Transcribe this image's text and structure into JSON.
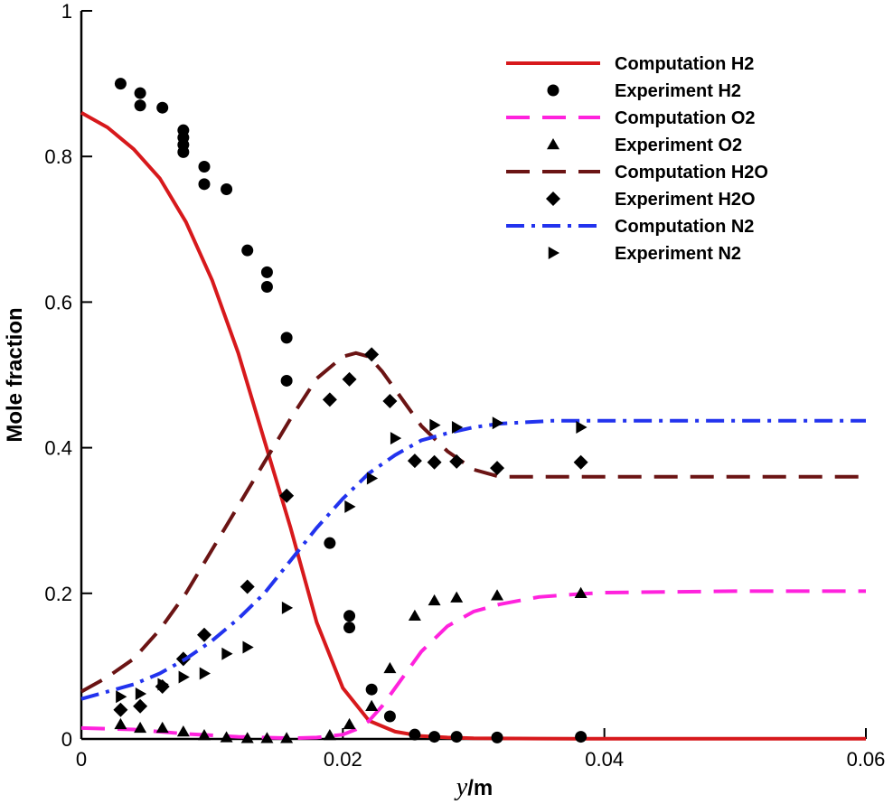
{
  "chart_data": {
    "type": "line",
    "xlabel_var": "y",
    "xlabel_unit": "/m",
    "ylabel": "Mole fraction",
    "xlim": [
      0,
      0.06
    ],
    "ylim": [
      0,
      1
    ],
    "x_ticks": [
      0,
      0.02,
      0.04,
      0.06
    ],
    "x_tick_labels": [
      "0",
      "0.02",
      "0.04",
      "0.06"
    ],
    "y_ticks": [
      0,
      0.2,
      0.4,
      0.6,
      0.8,
      1
    ],
    "y_tick_labels": [
      "0",
      "0.2",
      "0.4",
      "0.6",
      "0.8",
      "1"
    ],
    "grid": false,
    "legend_position": "top-right",
    "series": [
      {
        "name": "Computation H2",
        "kind": "line",
        "style": "solid",
        "color": "#d7191c",
        "x": [
          0,
          0.002,
          0.004,
          0.006,
          0.008,
          0.01,
          0.012,
          0.014,
          0.016,
          0.018,
          0.02,
          0.022,
          0.024,
          0.026,
          0.028,
          0.03,
          0.035,
          0.04,
          0.05,
          0.06
        ],
        "y": [
          0.86,
          0.84,
          0.81,
          0.77,
          0.71,
          0.63,
          0.53,
          0.41,
          0.29,
          0.16,
          0.07,
          0.025,
          0.01,
          0.004,
          0.002,
          0.001,
          0.0005,
          0.0003,
          0.0002,
          0.0002
        ]
      },
      {
        "name": "Experiment H2",
        "kind": "scatter",
        "marker": "circle",
        "color": "#000000",
        "x": [
          0.003,
          0.0045,
          0.0045,
          0.0062,
          0.0078,
          0.0078,
          0.0078,
          0.0078,
          0.0094,
          0.0094,
          0.0111,
          0.0127,
          0.0142,
          0.0142,
          0.0157,
          0.0157,
          0.019,
          0.0205,
          0.0205,
          0.0222,
          0.0236,
          0.0255,
          0.027,
          0.0287,
          0.0318,
          0.0382
        ],
        "y": [
          0.9,
          0.887,
          0.87,
          0.867,
          0.836,
          0.826,
          0.816,
          0.806,
          0.786,
          0.762,
          0.755,
          0.671,
          0.641,
          0.621,
          0.551,
          0.492,
          0.269,
          0.169,
          0.153,
          0.068,
          0.031,
          0.006,
          0.003,
          0.003,
          0.002,
          0.003
        ]
      },
      {
        "name": "Computation O2",
        "kind": "line",
        "style": "dashed",
        "color": "#ff22dd",
        "x": [
          0,
          0.004,
          0.008,
          0.012,
          0.016,
          0.018,
          0.02,
          0.021,
          0.022,
          0.023,
          0.024,
          0.025,
          0.026,
          0.028,
          0.03,
          0.032,
          0.035,
          0.038,
          0.04,
          0.05,
          0.06
        ],
        "y": [
          0.015,
          0.013,
          0.007,
          0.003,
          0.001,
          0.002,
          0.006,
          0.013,
          0.025,
          0.045,
          0.07,
          0.095,
          0.12,
          0.155,
          0.175,
          0.185,
          0.195,
          0.199,
          0.201,
          0.203,
          0.203
        ]
      },
      {
        "name": "Experiment O2",
        "kind": "scatter",
        "marker": "triangle-up",
        "color": "#000000",
        "x": [
          0.003,
          0.0045,
          0.0062,
          0.0078,
          0.0094,
          0.0111,
          0.0127,
          0.0142,
          0.0157,
          0.019,
          0.0205,
          0.0222,
          0.0236,
          0.0255,
          0.027,
          0.0287,
          0.0318,
          0.0382
        ],
        "y": [
          0.02,
          0.015,
          0.015,
          0.01,
          0.005,
          0.002,
          0.001,
          0.001,
          0.001,
          0.005,
          0.02,
          0.045,
          0.097,
          0.169,
          0.19,
          0.194,
          0.197,
          0.2
        ]
      },
      {
        "name": "Computation H2O",
        "kind": "line",
        "style": "dashed",
        "color": "#6b1414",
        "x": [
          0,
          0.002,
          0.004,
          0.006,
          0.008,
          0.01,
          0.012,
          0.014,
          0.016,
          0.018,
          0.02,
          0.021,
          0.022,
          0.023,
          0.024,
          0.025,
          0.026,
          0.028,
          0.03,
          0.032,
          0.034,
          0.036,
          0.038,
          0.04,
          0.05,
          0.06
        ],
        "y": [
          0.065,
          0.085,
          0.11,
          0.15,
          0.2,
          0.26,
          0.32,
          0.38,
          0.44,
          0.495,
          0.525,
          0.53,
          0.525,
          0.505,
          0.48,
          0.455,
          0.43,
          0.395,
          0.37,
          0.36,
          0.36,
          0.36,
          0.36,
          0.36,
          0.36,
          0.36
        ]
      },
      {
        "name": "Experiment H2O",
        "kind": "scatter",
        "marker": "diamond",
        "color": "#000000",
        "x": [
          0.003,
          0.0045,
          0.0062,
          0.0078,
          0.0094,
          0.0127,
          0.0157,
          0.019,
          0.0205,
          0.0222,
          0.0236,
          0.0255,
          0.027,
          0.0287,
          0.0318,
          0.0382
        ],
        "y": [
          0.04,
          0.045,
          0.072,
          0.11,
          0.143,
          0.209,
          0.334,
          0.466,
          0.494,
          0.528,
          0.464,
          0.382,
          0.38,
          0.381,
          0.372,
          0.38
        ]
      },
      {
        "name": "Computation N2",
        "kind": "line",
        "style": "dashdot",
        "color": "#2233ee",
        "x": [
          0,
          0.002,
          0.004,
          0.006,
          0.008,
          0.01,
          0.012,
          0.014,
          0.016,
          0.018,
          0.02,
          0.022,
          0.024,
          0.026,
          0.028,
          0.03,
          0.032,
          0.034,
          0.036,
          0.038,
          0.04,
          0.05,
          0.06
        ],
        "y": [
          0.055,
          0.065,
          0.075,
          0.09,
          0.11,
          0.135,
          0.165,
          0.2,
          0.245,
          0.29,
          0.33,
          0.365,
          0.39,
          0.41,
          0.42,
          0.428,
          0.433,
          0.435,
          0.437,
          0.437,
          0.437,
          0.437,
          0.437
        ]
      },
      {
        "name": "Experiment N2",
        "kind": "scatter",
        "marker": "triangle-right",
        "color": "#000000",
        "x": [
          0.003,
          0.0045,
          0.0062,
          0.0078,
          0.0094,
          0.0111,
          0.0127,
          0.0157,
          0.0205,
          0.0222,
          0.024,
          0.027,
          0.0287,
          0.0318,
          0.0382
        ],
        "y": [
          0.058,
          0.062,
          0.075,
          0.085,
          0.09,
          0.117,
          0.126,
          0.18,
          0.319,
          0.358,
          0.413,
          0.431,
          0.428,
          0.434,
          0.428
        ]
      }
    ]
  }
}
